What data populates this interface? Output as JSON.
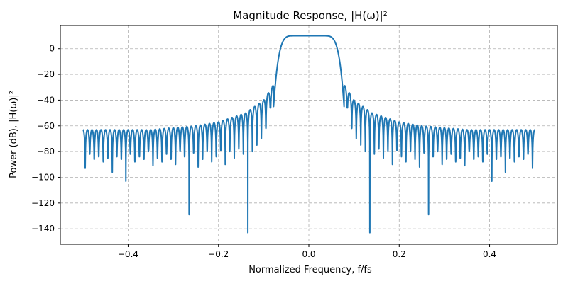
{
  "chart_data": {
    "type": "line",
    "title": "Magnitude Response, |H(ω)|²",
    "xlabel": "Normalized Frequency, f/fs",
    "ylabel": "Power (dB), |H(ω)|²",
    "xlim": [
      -0.55,
      0.55
    ],
    "ylim": [
      -152,
      18
    ],
    "xticks": [
      -0.4,
      -0.2,
      0.0,
      0.2,
      0.4
    ],
    "xtick_labels": [
      "−0.4",
      "−0.2",
      "0.0",
      "0.2",
      "0.4"
    ],
    "yticks": [
      0,
      -20,
      -40,
      -60,
      -80,
      -100,
      -120,
      -140
    ],
    "ytick_labels": [
      "0",
      "−20",
      "−40",
      "−60",
      "−80",
      "−100",
      "−120",
      "−140"
    ],
    "grid": true,
    "grid_style": "dashed",
    "line_color": "#1f77b4",
    "x_range": [
      -0.5,
      0.5
    ],
    "passband": {
      "gain_db": 10,
      "flat_edge": 0.03,
      "cutoff": 0.078,
      "edge_level_db": -45
    },
    "sidelobe_envelope": {
      "f": [
        0.08,
        0.1,
        0.14,
        0.2,
        0.25,
        0.35,
        0.5
      ],
      "db": [
        -29,
        -40,
        -50,
        -57,
        -60,
        -63,
        -63
      ]
    },
    "first_null": 0.085,
    "null_spacing": 0.01,
    "null_depths_db": [
      -46,
      -62,
      -70,
      -75,
      -80,
      -143,
      -82,
      -78,
      -85,
      -80,
      -90,
      -79,
      -84,
      -88,
      -80,
      -86,
      -92,
      -81,
      -129,
      -84,
      -80,
      -90,
      -86,
      -82,
      -88,
      -85,
      -91,
      -80,
      -86,
      -84,
      -88,
      -82,
      -103,
      -86,
      -84,
      -96,
      -85,
      -88,
      -84,
      -86,
      -82,
      -93
    ]
  }
}
